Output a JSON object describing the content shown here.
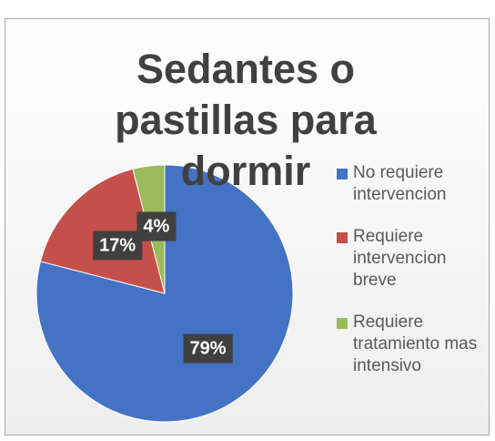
{
  "chart_data": {
    "type": "pie",
    "title": "Sedantes o pastillas para dormir",
    "categories": [
      "No requiere intervencion",
      "Requiere intervencion breve",
      "Requiere tratamiento mas intensivo"
    ],
    "values": [
      79,
      17,
      4
    ],
    "value_labels": [
      "79%",
      "17%",
      "4%"
    ],
    "colors": [
      "#4472c4",
      "#c5504b",
      "#9bbb59"
    ],
    "legend": "right"
  }
}
